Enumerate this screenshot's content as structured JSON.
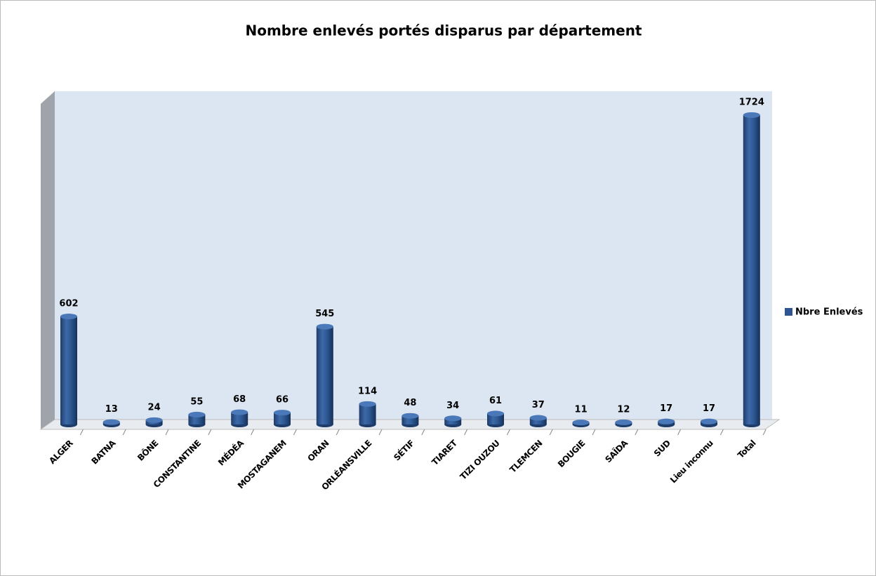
{
  "chart_data": {
    "type": "bar",
    "title": "Nombre enlevés portés disparus par département",
    "categories": [
      "ALGER",
      "BATNA",
      "BÔNE",
      "CONSTANTINE",
      "MÉDÉA",
      "MOSTAGANEM",
      "ORAN",
      "ORLÉANSVILLE",
      "SÉTIF",
      "TIARET",
      "TIZI OUZOU",
      "TLEMCEN",
      "BOUGIE",
      "SAÏDA",
      "SUD",
      "Lieu inconnu",
      "Total"
    ],
    "series": [
      {
        "name": "Nbre Enlevés",
        "color": "#2e5591",
        "values": [
          602,
          13,
          24,
          55,
          68,
          66,
          545,
          114,
          48,
          34,
          61,
          37,
          11,
          12,
          17,
          17,
          1724
        ]
      }
    ]
  }
}
